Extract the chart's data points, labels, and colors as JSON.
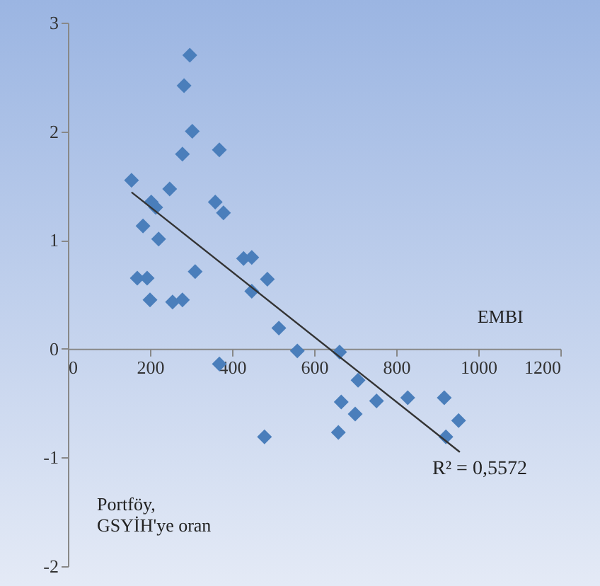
{
  "chart_data": {
    "type": "scatter",
    "xlabel": "EMBI",
    "ylabel": "Portföy, GSYİH'ye oran",
    "annotations": [
      "R² = 0,5572"
    ],
    "xlim": [
      0,
      1200
    ],
    "xticks": [
      0,
      200,
      400,
      600,
      800,
      1000,
      1200
    ],
    "ylim": [
      -2,
      3
    ],
    "yticks": [
      -2,
      -1,
      0,
      1,
      2,
      3
    ],
    "marker": "diamond",
    "series": [
      {
        "color": "#4a7ebb",
        "x": [
          155,
          183,
          203,
          214,
          221,
          248,
          169,
          193,
          200,
          255,
          279,
          279,
          283,
          297,
          303,
          310,
          369,
          359,
          379,
          369,
          428,
          448,
          448,
          486,
          514,
          559,
          479,
          662,
          659,
          666,
          707,
          700,
          752,
          828,
          917,
          921,
          952
        ],
        "values": [
          1.55,
          1.13,
          1.35,
          1.3,
          1.01,
          1.47,
          0.65,
          0.65,
          0.45,
          0.43,
          0.45,
          1.79,
          2.42,
          2.7,
          2.0,
          0.71,
          1.83,
          1.35,
          1.25,
          -0.14,
          0.83,
          0.84,
          0.53,
          0.64,
          0.19,
          -0.02,
          -0.81,
          -0.03,
          -0.77,
          -0.49,
          -0.29,
          -0.6,
          -0.48,
          -0.45,
          -0.45,
          -0.81,
          -0.66
        ]
      },
      {
        "type": "line",
        "color": "#333333",
        "marker": "none",
        "x": [
          155,
          955
        ],
        "values": [
          1.44,
          -0.95
        ]
      }
    ]
  }
}
